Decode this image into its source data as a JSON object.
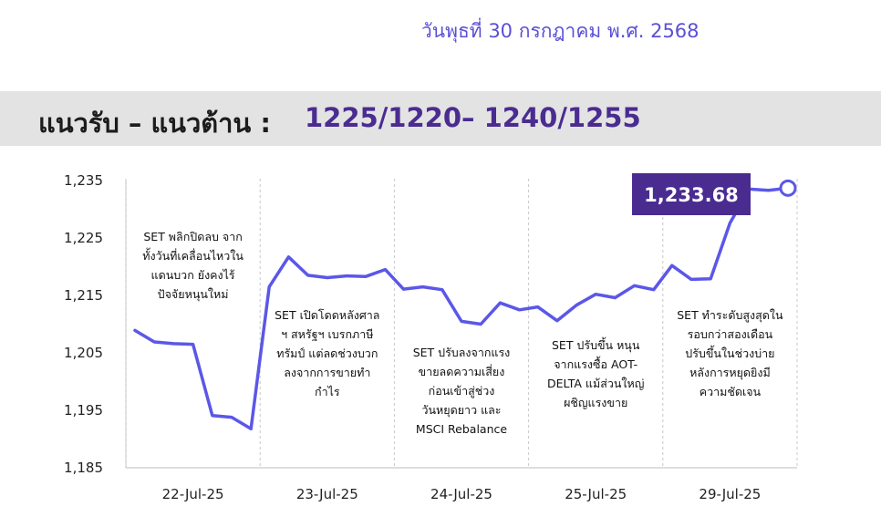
{
  "header": {
    "date": "วันพุธที่ 30 กรกฎาคม พ.ศ. 2568",
    "level_label": "แนวรับ – แนวต้าน :",
    "levels": "1225/1220– 1240/1255"
  },
  "colors": {
    "line": "#5b57e8",
    "callout_bg": "#4a2c91",
    "band_bg": "#e3e3e3",
    "accent_text": "#4a2c91"
  },
  "chart_data": {
    "type": "line",
    "title": "",
    "xlabel": "",
    "ylabel": "",
    "ylim": [
      1185,
      1235
    ],
    "yticks": [
      1185,
      1195,
      1205,
      1215,
      1225,
      1235
    ],
    "ytick_labels": [
      "1,185",
      "1,195",
      "1,205",
      "1,215",
      "1,225",
      "1,235"
    ],
    "categories": [
      "22-Jul-25",
      "23-Jul-25",
      "24-Jul-25",
      "25-Jul-25",
      "29-Jul-25"
    ],
    "grid": "dashed vertical separators between days",
    "series": [
      {
        "name": "",
        "days": [
          [
            1208.9,
            1206.9,
            1206.6,
            1206.5,
            1194.1,
            1193.8,
            1191.8
          ],
          [
            1216.5,
            1221.7,
            1218.5,
            1218.1,
            1218.4,
            1218.3,
            1219.5
          ],
          [
            1216.1,
            1216.5,
            1216.0,
            1210.5,
            1210.0,
            1213.7,
            1212.5
          ],
          [
            1213.0,
            1210.6,
            1213.3,
            1215.2,
            1214.6,
            1216.7,
            1216.0
          ],
          [
            1220.2,
            1217.8,
            1217.9,
            1227.6,
            1233.5,
            1233.3,
            1233.68
          ]
        ]
      }
    ],
    "last_value": 1233.68,
    "last_value_label": "1,233.68",
    "annotations": [
      [
        "SET พลิกปิดลบ จาก",
        "ทั้งวันที่เคลื่อนไหวใน",
        "แดนบวก ยังคงไร้",
        "ปัจจัยหนุนใหม่"
      ],
      [
        "SET เปิดโดดหลังศาล",
        "ฯ สหรัฐฯ เบรกภาษี",
        "ทรัมป์ แต่ลดช่วงบวก",
        "ลงจากการขายทำ",
        "กำไร"
      ],
      [
        "SET ปรับลงจากแรง",
        "ขายลดความเสี่ยง",
        "ก่อนเข้าสู่ช่วง",
        "วันหยุดยาว และ",
        "MSCI Rebalance"
      ],
      [
        "SET ปรับขึ้น หนุน",
        "จากแรงซื้อ AOT-",
        "DELTA แม้ส่วนใหญ่",
        "ผชิญแรงขาย"
      ],
      [
        "SET ทำระดับสูงสุดใน",
        "รอบกว่าสองเดือน",
        "ปรับขึ้นในช่วงบ่าย",
        "หลังการหยุดยิงมี",
        "ความชัดเจน"
      ]
    ]
  }
}
